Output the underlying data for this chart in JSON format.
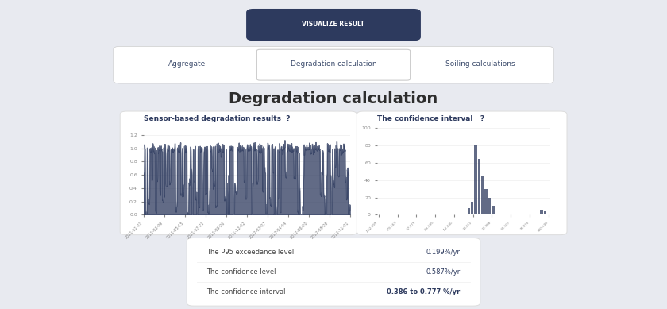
{
  "bg_color": "#e8eaf0",
  "card_color": "#ffffff",
  "title": "Degradation calculation",
  "title_fontsize": 14,
  "button_text": "VISUALIZE RESULT",
  "tabs": [
    "Aggregate",
    "Degradation calculation",
    "Soiling calculations"
  ],
  "active_tab": 1,
  "left_card_title": "Sensor-based degradation results  ?",
  "right_card_title": "The confidence interval   ?",
  "left_yticks": [
    0,
    0.2,
    0.4,
    0.6,
    0.8,
    1.0,
    1.2
  ],
  "left_xtick_labels": [
    "2011-01-01",
    "2011-03-09",
    "2011-05-15",
    "2011-07-21",
    "2011-09-26",
    "2011-12-02",
    "2012-02-07",
    "2012-04-14",
    "2012-06-20",
    "2012-08-26",
    "2012-11-01"
  ],
  "right_yticks": [
    0,
    20,
    40,
    60,
    80,
    100
  ],
  "right_xtick_labels": [
    "-102.099",
    "-79.563",
    "57.079",
    "-34.595",
    "-12.040",
    "10.472",
    "22.988",
    "51.507",
    "78.015",
    "100.530"
  ],
  "stats_labels": [
    "The P95 exceedance level",
    "The confidence level",
    "The confidence interval"
  ],
  "stats_values": [
    "0.199%/yr",
    "0.587%/yr",
    "0.386 to 0.777 %/yr"
  ],
  "chart_color": "#2d3a5e",
  "chart_alpha": 0.75
}
